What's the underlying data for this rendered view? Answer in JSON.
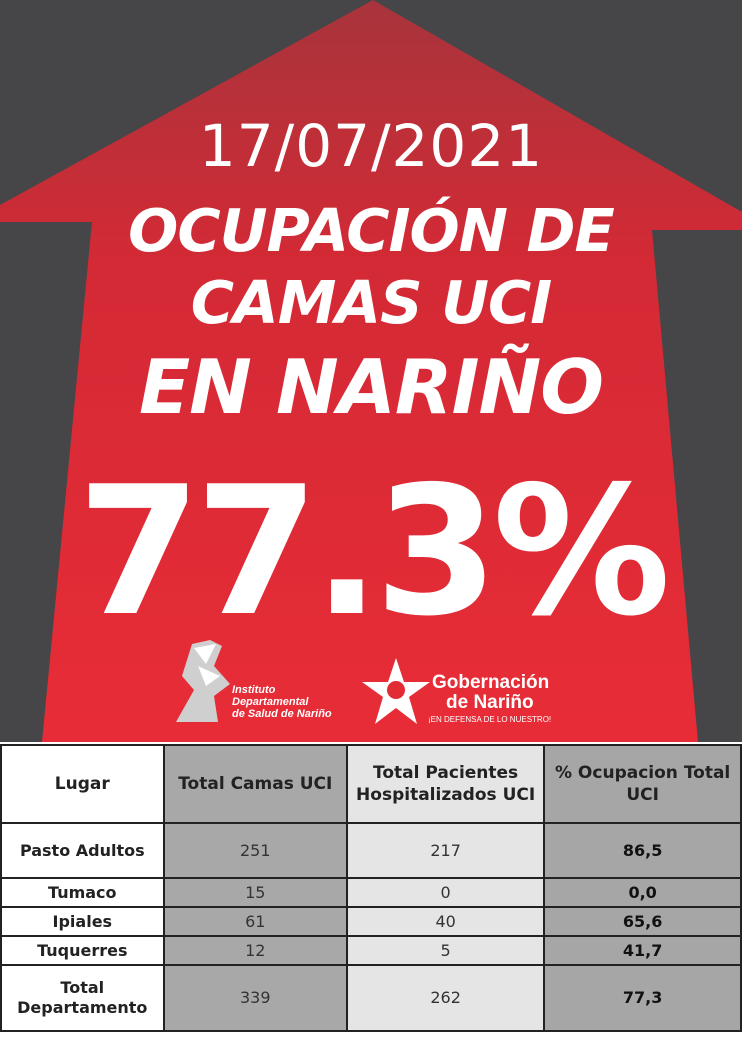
{
  "poster": {
    "date": "17/07/2021",
    "headline_line1": "OCUPACIÓN DE",
    "headline_line2": "CAMAS UCI",
    "headline_line3": "EN NARIÑO",
    "percentage": "77.3%",
    "logo_instituto": [
      "Instituto",
      "Departamental",
      "de Salud de Nariño"
    ],
    "logo_gobernacion_title1": "Gobernación",
    "logo_gobernacion_title2": "de Nariño",
    "logo_gobernacion_slogan": "¡EN DEFENSA DE LO NUESTRO!",
    "colors": {
      "background": "#464548",
      "arrow": "#e32b35",
      "text": "#ffffff"
    }
  },
  "table": {
    "headers": [
      "Lugar",
      "Total Camas UCI",
      "Total Pacientes Hospitalizados UCI",
      "% Ocupacion Total UCI"
    ],
    "rows": [
      [
        "Pasto Adultos",
        "251",
        "217",
        "86,5"
      ],
      [
        "Tumaco",
        "15",
        "0",
        "0,0"
      ],
      [
        "Ipiales",
        "61",
        "40",
        "65,6"
      ],
      [
        "Tuquerres",
        "12",
        "5",
        "41,7"
      ],
      [
        "Total Departamento",
        "339",
        "262",
        "77,3"
      ]
    ]
  }
}
